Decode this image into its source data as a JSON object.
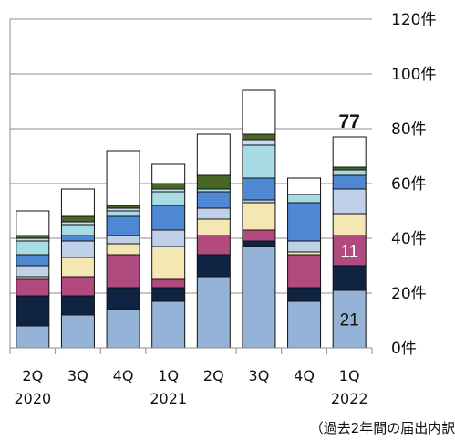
{
  "chart_data": {
    "type": "bar",
    "stacked": true,
    "categories": [
      "2Q 2020",
      "3Q",
      "4Q",
      "1Q 2021",
      "2Q",
      "3Q",
      "4Q",
      "1Q 2022"
    ],
    "category_lines": [
      [
        "2Q",
        "2020"
      ],
      [
        "3Q",
        ""
      ],
      [
        "4Q",
        ""
      ],
      [
        "1Q",
        "2021"
      ],
      [
        "2Q",
        ""
      ],
      [
        "3Q",
        ""
      ],
      [
        "4Q",
        ""
      ],
      [
        "1Q",
        "2022"
      ]
    ],
    "ylim": [
      0,
      120
    ],
    "y_ticks": [
      {
        "value": 0,
        "label": "0件"
      },
      {
        "value": 20,
        "label": "20件"
      },
      {
        "value": 40,
        "label": "40件"
      },
      {
        "value": 60,
        "label": "60件"
      },
      {
        "value": 80,
        "label": "80件"
      },
      {
        "value": 100,
        "label": "100件"
      },
      {
        "value": 120,
        "label": "120件"
      }
    ],
    "gridlines": true,
    "series_colors": [
      "#95B3D7",
      "#0F2342",
      "#B14A7E",
      "#F5E7B4",
      "#BFD0E8",
      "#4F88D2",
      "#A8DCE5",
      "#C9DCEF",
      "#4A6625",
      "#FFFFFF"
    ],
    "stacks": [
      [
        8,
        11,
        6,
        1,
        4,
        4,
        5,
        1,
        1,
        9
      ],
      [
        12,
        7,
        7,
        7,
        6,
        2,
        4,
        1,
        2,
        10
      ],
      [
        14,
        8,
        12,
        4,
        3,
        7,
        2,
        1,
        1,
        20
      ],
      [
        17,
        5,
        3,
        12,
        6,
        9,
        5,
        1,
        2,
        7
      ],
      [
        26,
        8,
        7,
        6,
        4,
        6,
        1,
        0,
        5,
        15
      ],
      [
        37,
        2,
        4,
        10,
        1,
        8,
        12,
        2,
        2,
        16
      ],
      [
        17,
        5,
        12,
        1,
        4,
        14,
        3,
        0,
        0,
        6
      ],
      [
        21,
        9,
        11,
        8,
        9,
        5,
        2,
        0,
        1,
        11
      ]
    ],
    "highlight_labels": [
      {
        "category_index": 7,
        "segment_index": 0,
        "text": "21",
        "color": "#111111"
      },
      {
        "category_index": 7,
        "segment_index": 2,
        "text": "11",
        "color": "#ffffff"
      }
    ],
    "total_label": {
      "category_index": 7,
      "text": "77"
    },
    "note": "（過去2年間の届出内訳）"
  }
}
